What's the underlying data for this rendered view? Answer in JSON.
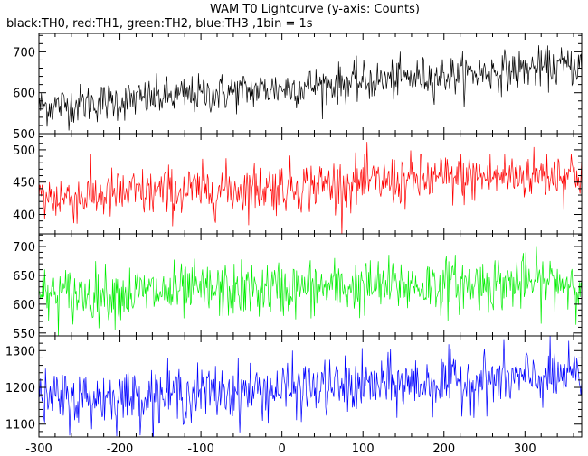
{
  "title": "WAM T0 Lightcurve (y-axis: Counts)",
  "subtitle": "black:TH0, red:TH1, green:TH2, blue:TH3 ,1bin = 1s",
  "chart_data": {
    "type": "line",
    "title": "WAM T0 Lightcurve (y-axis: Counts)",
    "subtitle": "black:TH0, red:TH1, green:TH2, blue:TH3 ,1bin = 1s",
    "xlabel": "",
    "ylabel": "Counts",
    "xlim": [
      -300,
      370
    ],
    "xticks": [
      -300,
      -200,
      -100,
      0,
      100,
      200,
      300
    ],
    "xtick_labels": [
      "-300",
      "-200",
      "-100",
      "0",
      "100",
      "200",
      "300"
    ],
    "bin_seconds": 1,
    "grid": false,
    "legend": "none",
    "panels": [
      {
        "series": "TH0",
        "color": "#000000",
        "ylim": [
          500,
          745
        ],
        "yticks": [
          500,
          600,
          700
        ],
        "ytick_labels": [
          "500",
          "600",
          "700"
        ],
        "mean_start": 565,
        "mean_end": 668,
        "noise": 24
      },
      {
        "series": "TH1",
        "color": "#ff0000",
        "ylim": [
          370,
          525
        ],
        "yticks": [
          400,
          450,
          500
        ],
        "ytick_labels": [
          "400",
          "450",
          "500"
        ],
        "mean_start": 425,
        "mean_end": 465,
        "noise": 20
      },
      {
        "series": "TH2",
        "color": "#00ee00",
        "ylim": [
          545,
          722
        ],
        "yticks": [
          550,
          600,
          650,
          700
        ],
        "ytick_labels": [
          "550",
          "600",
          "650",
          "700"
        ],
        "mean_start": 615,
        "mean_end": 640,
        "noise": 24
      },
      {
        "series": "TH3",
        "color": "#0000ff",
        "ylim": [
          1065,
          1340
        ],
        "yticks": [
          1100,
          1200,
          1300
        ],
        "ytick_labels": [
          "1100",
          "1200",
          "1300"
        ],
        "mean_start": 1165,
        "mean_end": 1230,
        "noise": 38
      }
    ]
  }
}
